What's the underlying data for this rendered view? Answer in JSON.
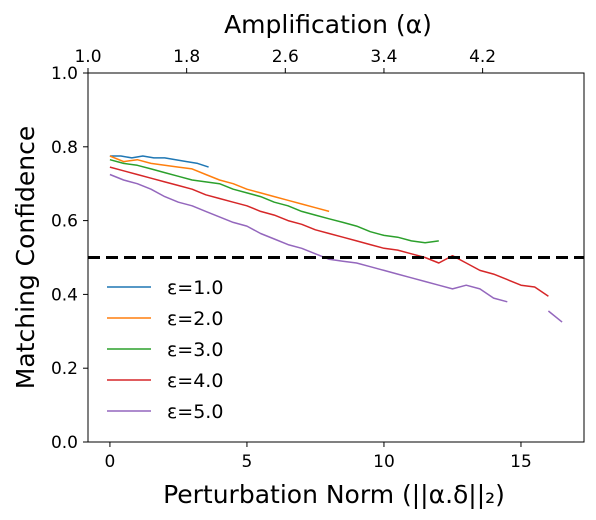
{
  "chart_data": {
    "type": "line",
    "xlabel": "Perturbation Norm (||α.δ||₂)",
    "ylabel": "Matching Confidence",
    "top_xlabel": "Amplification (α)",
    "xlim": [
      -0.8,
      17.3
    ],
    "ylim": [
      0.0,
      1.0
    ],
    "x_ticks": [
      0,
      5,
      10,
      15
    ],
    "x_tick_labels": [
      "0",
      "5",
      "10",
      "15"
    ],
    "y_ticks": [
      0.0,
      0.2,
      0.4,
      0.6,
      0.8,
      1.0
    ],
    "y_tick_labels": [
      "0.0",
      "0.2",
      "0.4",
      "0.6",
      "0.8",
      "1.0"
    ],
    "top_x_ticks": [
      -0.8,
      2.8,
      6.4,
      10.0,
      13.6
    ],
    "top_x_tick_labels": [
      "1.0",
      "1.8",
      "2.6",
      "3.4",
      "4.2"
    ],
    "threshold": 0.5,
    "grid": false,
    "legend_position": "lower-left",
    "series": [
      {
        "name": "ε=1.0",
        "color": "#1f77b4",
        "x": [
          0,
          0.4,
          0.8,
          1.2,
          1.6,
          2.0,
          2.4,
          2.8,
          3.2,
          3.6
        ],
        "y": [
          0.775,
          0.775,
          0.77,
          0.775,
          0.77,
          0.77,
          0.765,
          0.76,
          0.755,
          0.745
        ]
      },
      {
        "name": "ε=2.0",
        "color": "#ff7f0e",
        "x": [
          0,
          0.5,
          1.0,
          1.5,
          2.0,
          2.5,
          3.0,
          3.5,
          4.0,
          4.5,
          5.0,
          5.5,
          6.0,
          6.5,
          7.0,
          7.5,
          8.0
        ],
        "y": [
          0.775,
          0.76,
          0.765,
          0.755,
          0.75,
          0.745,
          0.74,
          0.725,
          0.71,
          0.7,
          0.685,
          0.675,
          0.665,
          0.655,
          0.645,
          0.635,
          0.625
        ]
      },
      {
        "name": "ε=3.0",
        "color": "#2ca02c",
        "x": [
          0,
          0.5,
          1.0,
          1.5,
          2.0,
          2.5,
          3.0,
          3.5,
          4.0,
          4.5,
          5.0,
          5.5,
          6.0,
          6.5,
          7.0,
          7.5,
          8.0,
          8.5,
          9.0,
          9.5,
          10.0,
          10.5,
          11.0,
          11.5,
          12.0
        ],
        "y": [
          0.765,
          0.755,
          0.75,
          0.74,
          0.73,
          0.72,
          0.71,
          0.705,
          0.7,
          0.685,
          0.675,
          0.665,
          0.65,
          0.64,
          0.625,
          0.615,
          0.605,
          0.595,
          0.585,
          0.57,
          0.56,
          0.555,
          0.545,
          0.54,
          0.545
        ]
      },
      {
        "name": "ε=4.0",
        "color": "#d62728",
        "x": [
          0,
          0.5,
          1.0,
          1.5,
          2.0,
          2.5,
          3.0,
          3.5,
          4.0,
          4.5,
          5.0,
          5.5,
          6.0,
          6.5,
          7.0,
          7.5,
          8.0,
          8.5,
          9.0,
          9.5,
          10.0,
          10.5,
          11.0,
          11.5,
          12.0,
          12.5,
          13.0,
          13.5,
          14.0,
          14.5,
          15.0,
          15.5,
          16.0
        ],
        "y": [
          0.745,
          0.735,
          0.725,
          0.715,
          0.705,
          0.695,
          0.685,
          0.67,
          0.66,
          0.65,
          0.64,
          0.625,
          0.615,
          0.6,
          0.59,
          0.575,
          0.565,
          0.555,
          0.545,
          0.535,
          0.525,
          0.52,
          0.51,
          0.5,
          0.485,
          0.505,
          0.485,
          0.465,
          0.455,
          0.44,
          0.425,
          0.42,
          0.395
        ]
      },
      {
        "name": "ε=5.0",
        "color": "#9467bd",
        "x": [
          0,
          0.5,
          1.0,
          1.5,
          2.0,
          2.5,
          3.0,
          3.5,
          4.0,
          4.5,
          5.0,
          5.5,
          6.0,
          6.5,
          7.0,
          7.5,
          8.0,
          8.5,
          9.0,
          9.5,
          10.0,
          10.5,
          11.0,
          11.5,
          12.0,
          12.5,
          13.0,
          13.5,
          14.0,
          14.5
        ],
        "y": [
          0.725,
          0.71,
          0.7,
          0.685,
          0.665,
          0.65,
          0.64,
          0.625,
          0.61,
          0.595,
          0.585,
          0.565,
          0.55,
          0.535,
          0.525,
          0.51,
          0.495,
          0.49,
          0.485,
          0.475,
          0.465,
          0.455,
          0.445,
          0.435,
          0.425,
          0.415,
          0.425,
          0.415,
          0.39,
          0.38
        ]
      },
      {
        "name": "",
        "color": "#9467bd",
        "x": [
          16.0,
          16.5
        ],
        "y": [
          0.355,
          0.325
        ]
      }
    ]
  }
}
